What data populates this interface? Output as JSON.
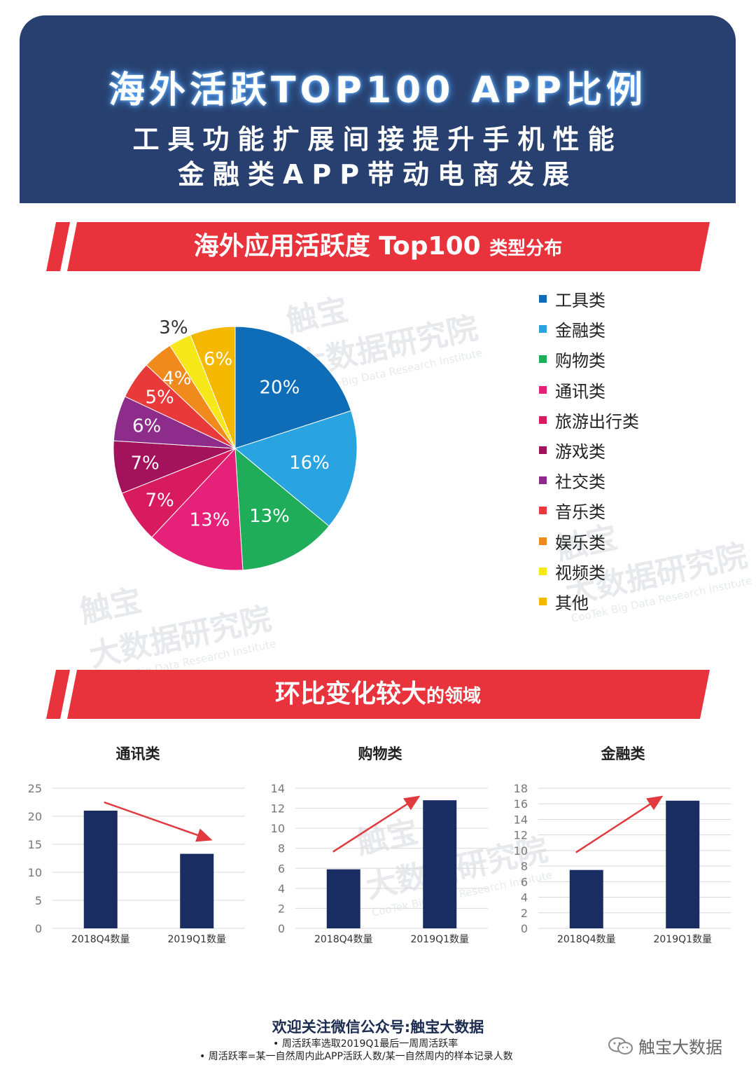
{
  "header": {
    "title": "海外活跃TOP100 APP比例",
    "subtitle_line1": "工具功能扩展间接提升手机性能",
    "subtitle_line2": "金融类APP带动电商发展"
  },
  "section1": {
    "banner_main": "海外应用活跃度 Top100 ",
    "banner_small": "类型分布"
  },
  "section2": {
    "banner_main": "环比变化较大",
    "banner_small": "的领域"
  },
  "colors": {
    "header_bg": "#27406f",
    "banner_red": "#e8333d",
    "bar_navy": "#1a2d63",
    "arrow_red": "#e03a3e"
  },
  "chart_data": [
    {
      "type": "pie",
      "title": "海外应用活跃度 Top100 类型分布",
      "slices": [
        {
          "name": "工具类",
          "value": 20,
          "label": "20%",
          "color": "#0f6cb6"
        },
        {
          "name": "金融类",
          "value": 16,
          "label": "16%",
          "color": "#2aa4e0"
        },
        {
          "name": "购物类",
          "value": 13,
          "label": "13%",
          "color": "#1fad5a"
        },
        {
          "name": "通讯类",
          "value": 13,
          "label": "13%",
          "color": "#e6217a"
        },
        {
          "name": "旅游出行类",
          "value": 7,
          "label": "7%",
          "color": "#d81b5e"
        },
        {
          "name": "游戏类",
          "value": 7,
          "label": "7%",
          "color": "#a3135c"
        },
        {
          "name": "社交类",
          "value": 6,
          "label": "6%",
          "color": "#8e2c8c"
        },
        {
          "name": "音乐类",
          "value": 5,
          "label": "5%",
          "color": "#e83a3a"
        },
        {
          "name": "娱乐类",
          "value": 4,
          "label": "4%",
          "color": "#f08a1c"
        },
        {
          "name": "视频类",
          "value": 3,
          "label": "3%",
          "color": "#f7e81a"
        },
        {
          "name": "其他",
          "value": 6,
          "label": "6%",
          "color": "#f5b800"
        }
      ],
      "legend_position": "right"
    },
    {
      "type": "bar",
      "title": "通讯类",
      "categories": [
        "2018Q4数量",
        "2019Q1数量"
      ],
      "values": [
        21,
        13.3
      ],
      "ylim": [
        0,
        25
      ],
      "yticks": [
        "0",
        "5",
        "10",
        "15",
        "20",
        "25"
      ],
      "trend": "down",
      "grid": true
    },
    {
      "type": "bar",
      "title": "购物类",
      "categories": [
        "2018Q4数量",
        "2019Q1数量"
      ],
      "values": [
        5.9,
        12.8
      ],
      "ylim": [
        0,
        14
      ],
      "yticks": [
        "0",
        "2",
        "4",
        "6",
        "8",
        "10",
        "12",
        "14"
      ],
      "trend": "up",
      "grid": true
    },
    {
      "type": "bar",
      "title": "金融类",
      "categories": [
        "2018Q4数量",
        "2019Q1数量"
      ],
      "values": [
        7.5,
        16.4
      ],
      "ylim": [
        0,
        18
      ],
      "yticks": [
        "0",
        "2",
        "4",
        "6",
        "8",
        "10",
        "12",
        "14",
        "16",
        "18"
      ],
      "trend": "up",
      "grid": true
    }
  ],
  "footer": {
    "main": "欢迎关注微信公众号:触宝大数据",
    "note1": "周活跃率选取2019Q1最后一周周活跃率",
    "note2": "周活跃率=某一自然周内此APP活跃人数/某一自然周内的样本记录人数",
    "wechat_label": "触宝大数据"
  },
  "watermark": {
    "line1": "触宝",
    "line2": "大数据研究院",
    "line3": "CooTek Big Data Research Institute"
  }
}
